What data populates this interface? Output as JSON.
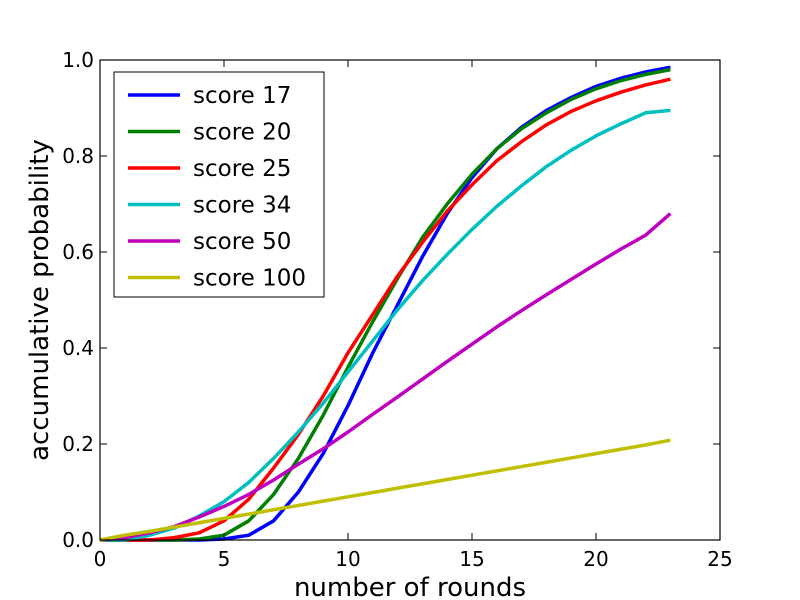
{
  "chart_data": {
    "type": "line",
    "title": "",
    "xlabel": "number of rounds",
    "ylabel": "accumulative probability",
    "xlim": [
      0,
      25
    ],
    "ylim": [
      0.0,
      1.0
    ],
    "xticks": [
      "0",
      "5",
      "10",
      "15",
      "20",
      "25"
    ],
    "yticks": [
      "0.0",
      "0.2",
      "0.4",
      "0.6",
      "0.8",
      "1.0"
    ],
    "grid": false,
    "legend_position": "top-left",
    "x": [
      0,
      1,
      2,
      3,
      4,
      5,
      6,
      7,
      8,
      9,
      10,
      11,
      12,
      13,
      14,
      15,
      16,
      17,
      18,
      19,
      20,
      21,
      22,
      23
    ],
    "series": [
      {
        "name": "score 17",
        "color": "#0000ff",
        "values": [
          0,
          0,
          0,
          0,
          0,
          0.002,
          0.01,
          0.04,
          0.1,
          0.18,
          0.28,
          0.39,
          0.49,
          0.59,
          0.68,
          0.755,
          0.815,
          0.86,
          0.895,
          0.922,
          0.945,
          0.962,
          0.975,
          0.985
        ]
      },
      {
        "name": "score 20",
        "color": "#008000",
        "values": [
          0,
          0,
          0,
          0,
          0.002,
          0.01,
          0.04,
          0.095,
          0.17,
          0.26,
          0.36,
          0.455,
          0.545,
          0.63,
          0.7,
          0.762,
          0.815,
          0.857,
          0.89,
          0.918,
          0.94,
          0.957,
          0.97,
          0.98
        ]
      },
      {
        "name": "score 25",
        "color": "#ff0000",
        "values": [
          0,
          0,
          0,
          0.005,
          0.015,
          0.04,
          0.085,
          0.15,
          0.22,
          0.3,
          0.39,
          0.47,
          0.55,
          0.62,
          0.685,
          0.74,
          0.79,
          0.83,
          0.865,
          0.893,
          0.915,
          0.933,
          0.948,
          0.96
        ]
      },
      {
        "name": "score 34",
        "color": "#00bfbf",
        "values": [
          0,
          0,
          0.01,
          0.025,
          0.05,
          0.08,
          0.12,
          0.17,
          0.225,
          0.285,
          0.35,
          0.415,
          0.48,
          0.54,
          0.595,
          0.647,
          0.695,
          0.738,
          0.778,
          0.812,
          0.842,
          0.867,
          0.89,
          0.895
        ]
      },
      {
        "name": "score 50",
        "color": "#bf00bf",
        "values": [
          0,
          0.005,
          0.015,
          0.028,
          0.048,
          0.07,
          0.095,
          0.125,
          0.158,
          0.19,
          0.225,
          0.262,
          0.298,
          0.335,
          0.372,
          0.408,
          0.444,
          0.478,
          0.511,
          0.543,
          0.575,
          0.606,
          0.635,
          0.68
        ]
      },
      {
        "name": "score 100",
        "color": "#bfbf00",
        "values": [
          0,
          0.01,
          0.018,
          0.027,
          0.036,
          0.045,
          0.054,
          0.063,
          0.072,
          0.081,
          0.09,
          0.099,
          0.108,
          0.117,
          0.126,
          0.135,
          0.144,
          0.153,
          0.162,
          0.171,
          0.18,
          0.189,
          0.198,
          0.208
        ]
      }
    ]
  }
}
